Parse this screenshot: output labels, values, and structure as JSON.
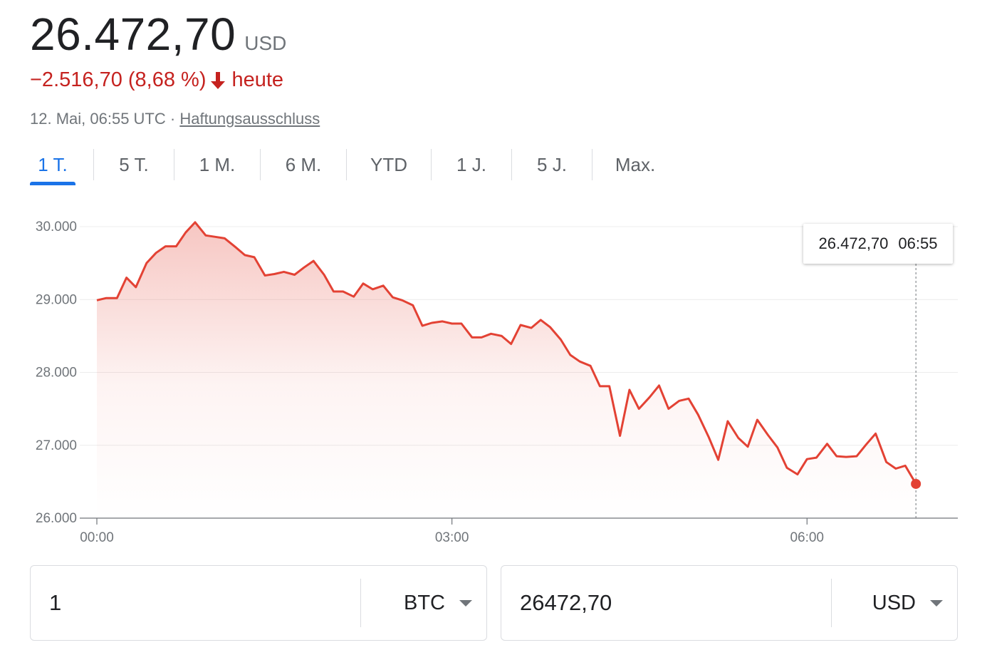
{
  "quote": {
    "price": "26.472,70",
    "currency": "USD",
    "change": "−2.516,70 (8,68 %)",
    "change_suffix": "heute",
    "change_direction_icon": "arrow-down-icon",
    "timestamp": "12. Mai, 06:55 UTC",
    "separator": "·",
    "disclaimer_link": "Haftungsausschluss",
    "colors": {
      "negative": "#c5221f",
      "accent": "#1a73e8"
    }
  },
  "tabs": [
    {
      "label": "1 T.",
      "active": true
    },
    {
      "label": "5 T.",
      "active": false
    },
    {
      "label": "1 M.",
      "active": false
    },
    {
      "label": "6 M.",
      "active": false
    },
    {
      "label": "YTD",
      "active": false
    },
    {
      "label": "1 J.",
      "active": false
    },
    {
      "label": "5 J.",
      "active": false
    },
    {
      "label": "Max.",
      "active": false
    }
  ],
  "tooltip": {
    "price": "26.472,70",
    "time": "06:55"
  },
  "converter": {
    "from_value": "1",
    "from_currency": "BTC",
    "to_value": "26472,70",
    "to_currency": "USD"
  },
  "chart_data": {
    "type": "area",
    "line_color": "#e34234",
    "ylim": [
      26000,
      30000
    ],
    "yticks": [
      {
        "value": 30000,
        "label": "30.000"
      },
      {
        "value": 29000,
        "label": "29.000"
      },
      {
        "value": 28000,
        "label": "28.000"
      },
      {
        "value": 27000,
        "label": "27.000"
      },
      {
        "value": 26000,
        "label": "26.000"
      }
    ],
    "xlim": [
      0,
      7.25
    ],
    "xticks": [
      {
        "value": 0,
        "label": "00:00"
      },
      {
        "value": 3,
        "label": "03:00"
      },
      {
        "value": 6,
        "label": "06:00"
      }
    ],
    "grid": true,
    "x": [
      0,
      0.08,
      0.17,
      0.25,
      0.33,
      0.42,
      0.5,
      0.58,
      0.67,
      0.75,
      0.83,
      0.92,
      1.0,
      1.08,
      1.17,
      1.25,
      1.33,
      1.42,
      1.5,
      1.58,
      1.67,
      1.75,
      1.83,
      1.92,
      2.0,
      2.08,
      2.17,
      2.25,
      2.33,
      2.42,
      2.5,
      2.58,
      2.67,
      2.75,
      2.83,
      2.92,
      3.0,
      3.08,
      3.17,
      3.25,
      3.33,
      3.42,
      3.5,
      3.58,
      3.67,
      3.75,
      3.83,
      3.92,
      4.0,
      4.08,
      4.17,
      4.25,
      4.33,
      4.42,
      4.5,
      4.58,
      4.67,
      4.75,
      4.83,
      4.92,
      5.0,
      5.08,
      5.17,
      5.25,
      5.33,
      5.42,
      5.5,
      5.58,
      5.67,
      5.75,
      5.83,
      5.92,
      6.0,
      6.08,
      6.17,
      6.25,
      6.33,
      6.42,
      6.5,
      6.58,
      6.67,
      6.75,
      6.83,
      6.92
    ],
    "y": [
      28990,
      29020,
      29020,
      29300,
      29170,
      29500,
      29640,
      29730,
      29730,
      29920,
      30060,
      29880,
      29860,
      29840,
      29720,
      29610,
      29580,
      29330,
      29350,
      29380,
      29340,
      29440,
      29530,
      29340,
      29110,
      29110,
      29040,
      29220,
      29140,
      29190,
      29030,
      28990,
      28920,
      28640,
      28680,
      28700,
      28670,
      28670,
      28480,
      28480,
      28530,
      28500,
      28390,
      28650,
      28610,
      28720,
      28620,
      28450,
      28240,
      28150,
      28090,
      27810,
      27810,
      27130,
      27760,
      27500,
      27660,
      27820,
      27500,
      27610,
      27640,
      27420,
      27110,
      26800,
      27330,
      27100,
      26980,
      27350,
      27140,
      26970,
      26690,
      26600,
      26810,
      26830,
      27020,
      26850,
      26840,
      26850,
      27010,
      27160,
      26770,
      26680,
      26720,
      26470
    ],
    "last_point": {
      "x": 6.92,
      "y": 26470
    }
  }
}
